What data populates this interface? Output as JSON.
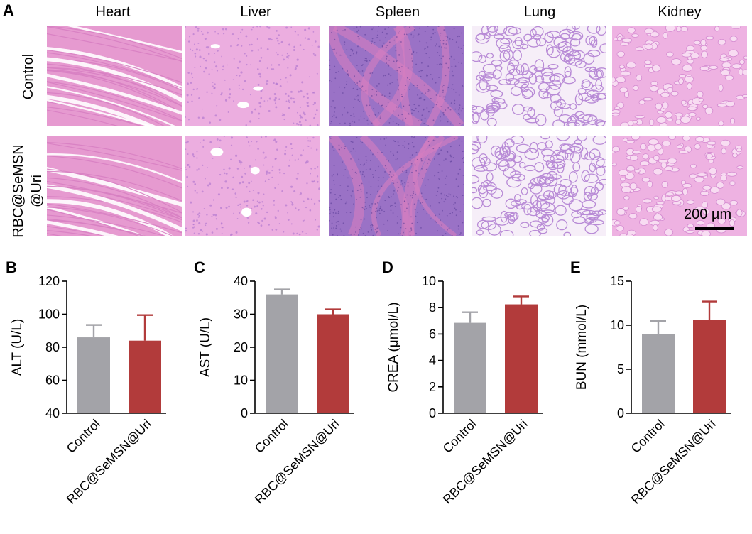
{
  "panel_a": {
    "letter": "A",
    "organs": [
      "Heart",
      "Liver",
      "Spleen",
      "Lung",
      "Kidney"
    ],
    "rows": [
      "Control",
      "RBC@SeMSN\n@Uri"
    ],
    "scale_bar": "200 μm"
  },
  "colors": {
    "control": "#a3a3a8",
    "treated": "#b23b3b",
    "treated_error": "#b23b3b",
    "tissue_pink": "#e8a3d6",
    "tissue_purple": "#8e6fc0"
  },
  "chart_data": [
    {
      "letter": "B",
      "type": "bar",
      "categories": [
        "Control",
        "RBC@SeMSN@Uri"
      ],
      "values": [
        86,
        84
      ],
      "errors": [
        7.5,
        15.5
      ],
      "ylabel": "ALT (U/L)",
      "ylim": [
        40,
        120
      ],
      "yticks": [
        40,
        60,
        80,
        100,
        120
      ]
    },
    {
      "letter": "C",
      "type": "bar",
      "categories": [
        "Control",
        "RBC@SeMSN@Uri"
      ],
      "values": [
        36,
        30
      ],
      "errors": [
        1.5,
        1.5
      ],
      "ylabel": "AST (U/L)",
      "ylim": [
        0,
        40
      ],
      "yticks": [
        0,
        10,
        20,
        30,
        40
      ]
    },
    {
      "letter": "D",
      "type": "bar",
      "categories": [
        "Control",
        "RBC@SeMSN@Uri"
      ],
      "values": [
        6.85,
        8.25
      ],
      "errors": [
        0.8,
        0.6
      ],
      "ylabel": "CREA (μmol/L)",
      "ylim": [
        0,
        10
      ],
      "yticks": [
        0,
        2,
        4,
        6,
        8,
        10
      ]
    },
    {
      "letter": "E",
      "type": "bar",
      "categories": [
        "Control",
        "RBC@SeMSN@Uri"
      ],
      "values": [
        9.0,
        10.6
      ],
      "errors": [
        1.5,
        2.1
      ],
      "ylabel": "BUN (mmol/L)",
      "ylim": [
        0,
        15
      ],
      "yticks": [
        0,
        5,
        10,
        15
      ]
    }
  ]
}
